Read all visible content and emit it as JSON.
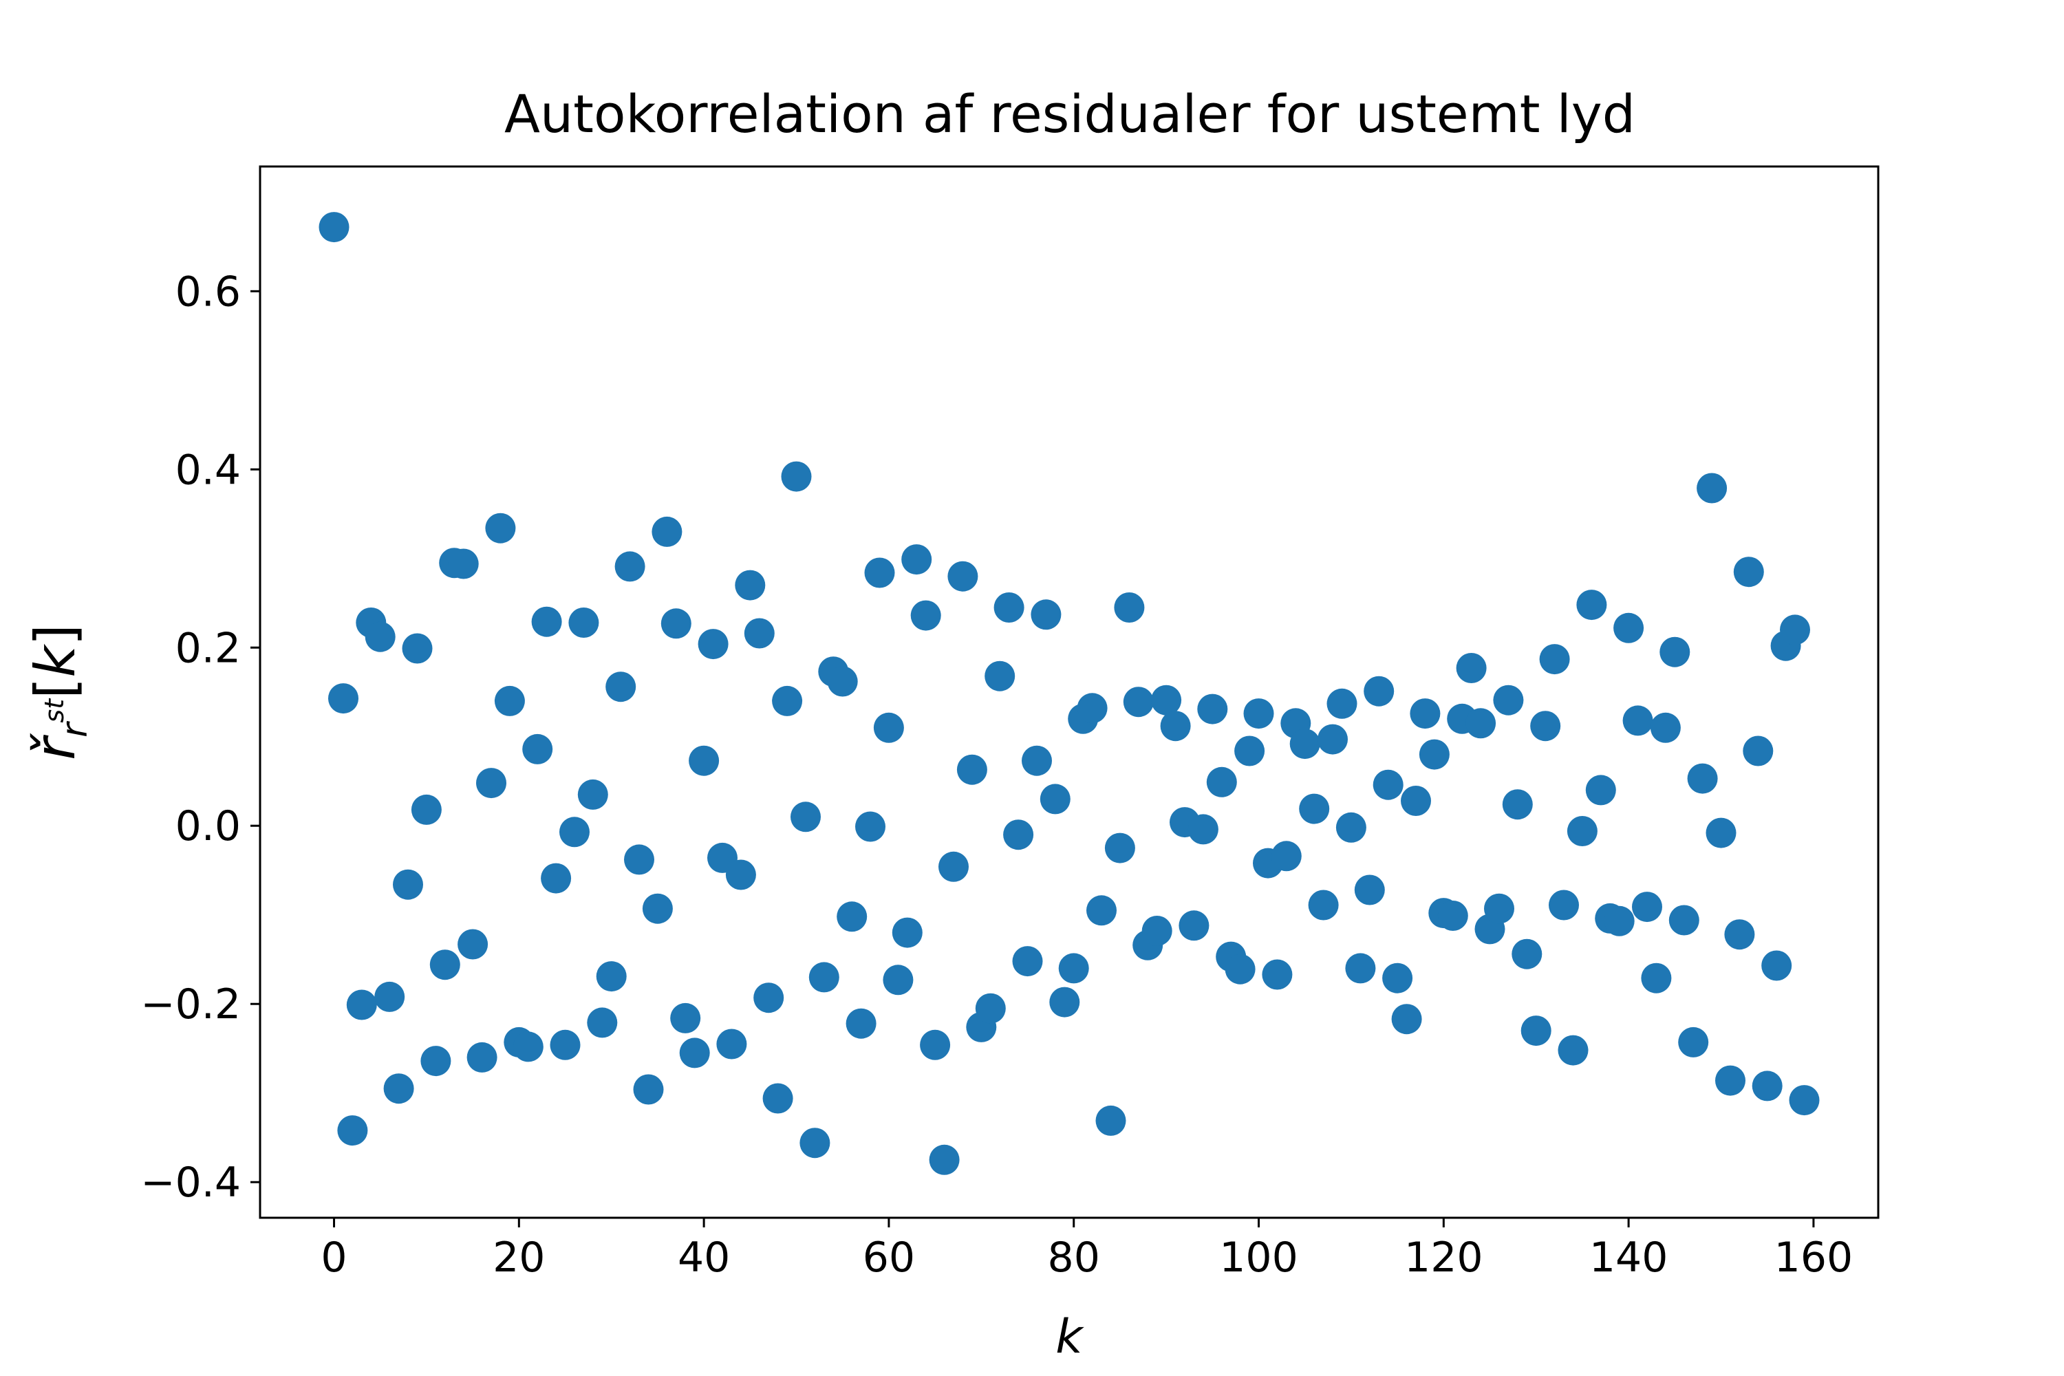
{
  "chart_data": {
    "type": "scatter",
    "title": "Autokorrelation af residualer for ustemt lyd",
    "xlabel": "k",
    "ylabel": "ř_{r^{st}}[k]",
    "xlim": [
      -8,
      167
    ],
    "ylim": [
      -0.44,
      0.74
    ],
    "xticks": [
      0,
      20,
      40,
      60,
      80,
      100,
      120,
      140,
      160
    ],
    "xtick_labels": [
      "0",
      "20",
      "40",
      "60",
      "80",
      "100",
      "120",
      "140",
      "160"
    ],
    "yticks": [
      -0.4,
      -0.2,
      0.0,
      0.2,
      0.4,
      0.6
    ],
    "ytick_labels": [
      "−0.4",
      "−0.2",
      "0.0",
      "0.2",
      "0.4",
      "0.6"
    ],
    "marker_color": "#1f77b4",
    "grid": false,
    "x": [
      0,
      1,
      2,
      3,
      4,
      5,
      6,
      7,
      8,
      9,
      10,
      11,
      12,
      13,
      14,
      15,
      16,
      17,
      18,
      19,
      20,
      21,
      22,
      23,
      24,
      25,
      26,
      27,
      28,
      29,
      30,
      31,
      32,
      33,
      34,
      35,
      36,
      37,
      38,
      39,
      40,
      41,
      42,
      43,
      44,
      45,
      46,
      47,
      48,
      49,
      50,
      51,
      52,
      53,
      54,
      55,
      56,
      57,
      58,
      59,
      60,
      61,
      62,
      63,
      64,
      65,
      66,
      67,
      68,
      69,
      70,
      71,
      72,
      73,
      74,
      75,
      76,
      77,
      78,
      79,
      80,
      81,
      82,
      83,
      84,
      85,
      86,
      87,
      88,
      89,
      90,
      91,
      92,
      93,
      94,
      95,
      96,
      97,
      98,
      99,
      100,
      101,
      102,
      103,
      104,
      105,
      106,
      107,
      108,
      109,
      110,
      111,
      112,
      113,
      114,
      115,
      116,
      117,
      118,
      119,
      120,
      121,
      122,
      123,
      124,
      125,
      126,
      127,
      128,
      129,
      130,
      131,
      132,
      133,
      134,
      135,
      136,
      137,
      138,
      139,
      140,
      141,
      142,
      143,
      144,
      145,
      146,
      147,
      148,
      149,
      150,
      151,
      152,
      153,
      154,
      155,
      156,
      157,
      158,
      159
    ],
    "y": [
      0.672,
      0.143,
      -0.342,
      -0.201,
      0.228,
      0.212,
      -0.192,
      -0.295,
      -0.066,
      0.199,
      0.018,
      -0.264,
      -0.156,
      0.295,
      0.294,
      -0.133,
      -0.26,
      0.048,
      0.334,
      0.14,
      -0.243,
      -0.248,
      0.086,
      0.229,
      -0.059,
      -0.246,
      -0.007,
      0.228,
      0.035,
      -0.221,
      -0.169,
      0.156,
      0.291,
      -0.038,
      -0.296,
      -0.093,
      0.33,
      0.227,
      -0.216,
      -0.255,
      0.073,
      0.204,
      -0.036,
      -0.245,
      -0.055,
      0.27,
      0.216,
      -0.193,
      -0.306,
      0.14,
      0.392,
      0.01,
      -0.356,
      -0.17,
      0.173,
      0.162,
      -0.102,
      -0.222,
      -0.001,
      0.284,
      0.11,
      -0.173,
      -0.12,
      0.299,
      0.236,
      -0.246,
      -0.375,
      -0.046,
      0.28,
      0.063,
      -0.226,
      -0.205,
      0.168,
      0.245,
      -0.01,
      -0.152,
      0.073,
      0.237,
      0.03,
      -0.198,
      -0.16,
      0.12,
      0.132,
      -0.095,
      -0.331,
      -0.025,
      0.245,
      0.139,
      -0.134,
      -0.118,
      0.141,
      0.112,
      0.004,
      -0.112,
      -0.004,
      0.131,
      0.049,
      -0.147,
      -0.161,
      0.084,
      0.126,
      -0.042,
      -0.167,
      -0.034,
      0.115,
      0.092,
      0.019,
      -0.089,
      0.097,
      0.137,
      -0.002,
      -0.16,
      -0.072,
      0.151,
      0.046,
      -0.171,
      -0.217,
      0.028,
      0.126,
      0.08,
      -0.098,
      -0.101,
      0.12,
      0.177,
      0.115,
      -0.116,
      -0.093,
      0.141,
      0.024,
      -0.144,
      -0.23,
      0.112,
      0.187,
      -0.089,
      -0.252,
      -0.006,
      0.248,
      0.04,
      -0.104,
      -0.107,
      0.222,
      0.118,
      -0.091,
      -0.171,
      0.11,
      0.195,
      -0.106,
      -0.243,
      0.053,
      0.379,
      -0.008,
      -0.286,
      -0.122,
      0.285,
      0.084,
      -0.292,
      -0.157,
      0.202,
      0.22,
      -0.308
    ]
  }
}
